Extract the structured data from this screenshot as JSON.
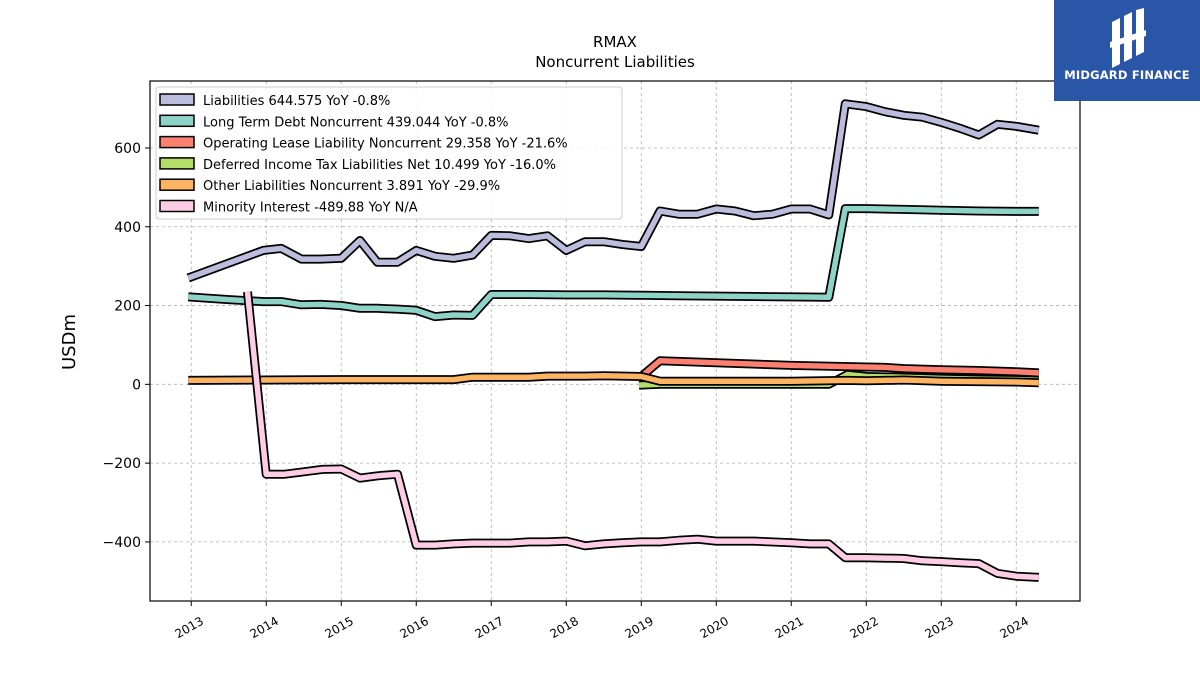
{
  "logo": {
    "brand": "MIDGARD FINANCE"
  },
  "chart_data": {
    "type": "line",
    "title": "RMAX",
    "subtitle": "Noncurrent  Liabilities",
    "ylabel": "USDm",
    "xlabel": "",
    "ylim": [
      -550,
      770
    ],
    "xlim": [
      2012.45,
      2024.85
    ],
    "yticks": [
      -400,
      -200,
      0,
      200,
      400,
      600
    ],
    "ytick_labels": [
      "−400",
      "−200",
      "0",
      "200",
      "400",
      "600"
    ],
    "xticks": [
      2013,
      2014,
      2015,
      2016,
      2017,
      2018,
      2019,
      2020,
      2021,
      2022,
      2023,
      2024
    ],
    "xtick_labels": [
      "2013",
      "2014",
      "2015",
      "2016",
      "2017",
      "2018",
      "2019",
      "2020",
      "2021",
      "2022",
      "2023",
      "2024"
    ],
    "grid": true,
    "legend_position": "top-left",
    "series": [
      {
        "name": "Liabilities",
        "legend": "Liabilities  644.575 YoY -0.8%",
        "color": "#bcbddc",
        "points": [
          [
            2012.96,
            270
          ],
          [
            2013.96,
            340
          ],
          [
            2014.2,
            345
          ],
          [
            2014.47,
            318
          ],
          [
            2014.72,
            318
          ],
          [
            2015.0,
            320
          ],
          [
            2015.25,
            365
          ],
          [
            2015.48,
            310
          ],
          [
            2015.75,
            310
          ],
          [
            2016.0,
            340
          ],
          [
            2016.25,
            325
          ],
          [
            2016.5,
            320
          ],
          [
            2016.75,
            328
          ],
          [
            2017.0,
            378
          ],
          [
            2017.25,
            377
          ],
          [
            2017.5,
            370
          ],
          [
            2017.75,
            377
          ],
          [
            2018.0,
            340
          ],
          [
            2018.25,
            362
          ],
          [
            2018.5,
            362
          ],
          [
            2018.75,
            355
          ],
          [
            2019.0,
            350
          ],
          [
            2019.25,
            440
          ],
          [
            2019.5,
            432
          ],
          [
            2019.75,
            432
          ],
          [
            2020.0,
            445
          ],
          [
            2020.25,
            440
          ],
          [
            2020.5,
            428
          ],
          [
            2020.75,
            432
          ],
          [
            2021.0,
            445
          ],
          [
            2021.25,
            445
          ],
          [
            2021.5,
            430
          ],
          [
            2021.72,
            712
          ],
          [
            2022.0,
            705
          ],
          [
            2022.25,
            692
          ],
          [
            2022.5,
            683
          ],
          [
            2022.75,
            678
          ],
          [
            2023.0,
            665
          ],
          [
            2023.25,
            650
          ],
          [
            2023.5,
            633
          ],
          [
            2023.75,
            660
          ],
          [
            2024.0,
            655
          ],
          [
            2024.3,
            645
          ]
        ]
      },
      {
        "name": "Long Term Debt Noncurrent",
        "legend": "Long Term Debt Noncurrent  439.044 YoY -0.8%",
        "color": "#8dd3c7",
        "points": [
          [
            2012.96,
            222
          ],
          [
            2013.5,
            215
          ],
          [
            2013.96,
            210
          ],
          [
            2014.2,
            210
          ],
          [
            2014.47,
            202
          ],
          [
            2014.72,
            203
          ],
          [
            2015.0,
            200
          ],
          [
            2015.25,
            193
          ],
          [
            2015.48,
            193
          ],
          [
            2015.75,
            191
          ],
          [
            2016.0,
            188
          ],
          [
            2016.25,
            172
          ],
          [
            2016.5,
            176
          ],
          [
            2016.75,
            175
          ],
          [
            2017.0,
            228
          ],
          [
            2017.5,
            228
          ],
          [
            2018.0,
            227
          ],
          [
            2018.5,
            227
          ],
          [
            2019.0,
            226
          ],
          [
            2019.5,
            225
          ],
          [
            2020.0,
            224
          ],
          [
            2020.5,
            223
          ],
          [
            2021.0,
            222
          ],
          [
            2021.5,
            221
          ],
          [
            2021.72,
            446
          ],
          [
            2022.0,
            446
          ],
          [
            2022.5,
            444
          ],
          [
            2023.0,
            442
          ],
          [
            2023.5,
            440
          ],
          [
            2024.0,
            439
          ],
          [
            2024.3,
            439
          ]
        ]
      },
      {
        "name": "Operating Lease Liability Noncurrent",
        "legend": "Operating Lease Liability Noncurrent  29.358 YoY -21.6%",
        "color": "#fb8072",
        "points": [
          [
            2019.0,
            20
          ],
          [
            2019.25,
            60
          ],
          [
            2020.0,
            55
          ],
          [
            2021.0,
            48
          ],
          [
            2021.75,
            45
          ],
          [
            2022.25,
            43
          ],
          [
            2022.5,
            40
          ],
          [
            2023.0,
            37
          ],
          [
            2023.5,
            35
          ],
          [
            2024.0,
            32
          ],
          [
            2024.3,
            29
          ]
        ]
      },
      {
        "name": "Deferred Income Tax Liabilities Net",
        "legend": "Deferred Income Tax Liabilities Net  10.499 YoY -16.0%",
        "color": "#b3de69",
        "points": [
          [
            2018.97,
            -2
          ],
          [
            2019.25,
            0
          ],
          [
            2020.0,
            0
          ],
          [
            2021.0,
            0
          ],
          [
            2021.5,
            0
          ],
          [
            2021.75,
            25
          ],
          [
            2022.0,
            20
          ],
          [
            2022.5,
            18
          ],
          [
            2023.0,
            15
          ],
          [
            2023.5,
            13
          ],
          [
            2024.0,
            12
          ],
          [
            2024.3,
            10
          ]
        ]
      },
      {
        "name": "Other Liabilities Noncurrent",
        "legend": "Other Liabilities Noncurrent  3.891 YoY -29.9%",
        "color": "#fdb462",
        "points": [
          [
            2012.96,
            10
          ],
          [
            2014.0,
            11
          ],
          [
            2015.0,
            12
          ],
          [
            2016.0,
            12
          ],
          [
            2016.5,
            12
          ],
          [
            2016.75,
            18
          ],
          [
            2017.5,
            18
          ],
          [
            2017.75,
            21
          ],
          [
            2018.25,
            21
          ],
          [
            2018.5,
            22
          ],
          [
            2019.0,
            20
          ],
          [
            2019.25,
            8
          ],
          [
            2020.0,
            8
          ],
          [
            2021.0,
            8
          ],
          [
            2021.75,
            10
          ],
          [
            2022.0,
            9
          ],
          [
            2022.5,
            11
          ],
          [
            2023.0,
            8
          ],
          [
            2023.5,
            7
          ],
          [
            2024.0,
            6
          ],
          [
            2024.3,
            4
          ]
        ]
      },
      {
        "name": "Minority Interest",
        "legend": "Minority Interest  -489.88 YoY N/A",
        "color": "#fccde5",
        "points": [
          [
            2013.75,
            235
          ],
          [
            2014.0,
            -228
          ],
          [
            2014.25,
            -228
          ],
          [
            2014.5,
            -222
          ],
          [
            2014.75,
            -216
          ],
          [
            2015.0,
            -215
          ],
          [
            2015.25,
            -238
          ],
          [
            2015.5,
            -232
          ],
          [
            2015.75,
            -228
          ],
          [
            2016.0,
            -408
          ],
          [
            2016.25,
            -408
          ],
          [
            2016.5,
            -405
          ],
          [
            2016.75,
            -403
          ],
          [
            2017.0,
            -403
          ],
          [
            2017.25,
            -403
          ],
          [
            2017.5,
            -400
          ],
          [
            2017.75,
            -400
          ],
          [
            2018.0,
            -398
          ],
          [
            2018.25,
            -410
          ],
          [
            2018.5,
            -405
          ],
          [
            2018.75,
            -402
          ],
          [
            2019.0,
            -400
          ],
          [
            2019.25,
            -400
          ],
          [
            2019.5,
            -396
          ],
          [
            2019.75,
            -393
          ],
          [
            2020.0,
            -398
          ],
          [
            2020.5,
            -398
          ],
          [
            2021.0,
            -402
          ],
          [
            2021.25,
            -405
          ],
          [
            2021.5,
            -405
          ],
          [
            2021.72,
            -440
          ],
          [
            2022.0,
            -440
          ],
          [
            2022.5,
            -442
          ],
          [
            2022.75,
            -448
          ],
          [
            2023.0,
            -450
          ],
          [
            2023.25,
            -453
          ],
          [
            2023.5,
            -455
          ],
          [
            2023.75,
            -480
          ],
          [
            2024.0,
            -487
          ],
          [
            2024.3,
            -490
          ]
        ]
      }
    ]
  }
}
